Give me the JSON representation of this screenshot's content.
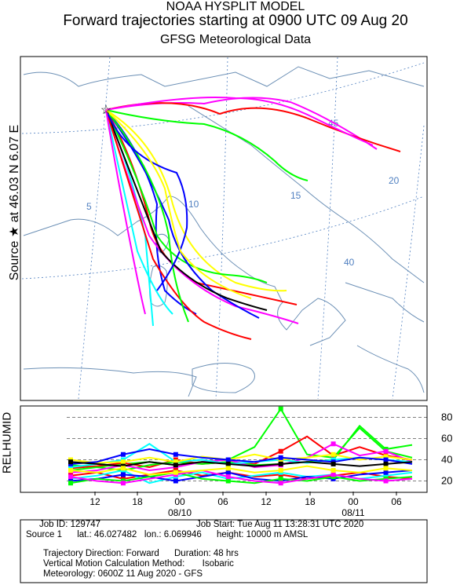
{
  "header": {
    "line1": "NOAA HYSPLIT MODEL",
    "line2": "Forward trajectories starting at 0900 UTC 09 Aug 20",
    "line3": "GFSG Meteorological Data"
  },
  "side_label": "Source ★ at    46.03 N    6.07 E",
  "map": {
    "lon_labels": [
      "5",
      "10",
      "15",
      "20"
    ],
    "lat_labels": [
      "40",
      "45"
    ],
    "source_marker": "star-icon",
    "colors": {
      "red": "#ff0000",
      "blue": "#0000ff",
      "green": "#00ff00",
      "cyan": "#00ffff",
      "magenta": "#ff00ff",
      "yellow": "#ffff00",
      "black": "#000000",
      "land": "#6b8fb5",
      "grid": "#4f7fc0"
    }
  },
  "rh_label": "RELHUMID",
  "footer": {
    "date1": "08/10",
    "date2": "08/11",
    "job_id": "Job ID: 129747",
    "job_start": "Job Start: Tue Aug 11 13:28:31 UTC 2020",
    "source": "Source 1      lat.: 46.027482   lon.: 6.069946      height: 10000 m AMSL",
    "traj_direction": "Trajectory Direction: Forward      Duration: 48 hrs",
    "vertical_motion": "Vertical Motion Calculation Method:       Isobaric",
    "meteorology": "Meteorology: 0600Z 11 Aug 2020 - GFS"
  },
  "chart_data": {
    "type": "line",
    "title": "Forward trajectories starting at 0900 UTC 09 Aug 20",
    "ylabel": "RELHUMID",
    "x_tick_labels": [
      "12",
      "18",
      "00",
      "06",
      "12",
      "18",
      "00",
      "06"
    ],
    "y_ticks": [
      20,
      40,
      60,
      80
    ],
    "ylim": [
      10,
      90
    ],
    "grid": "dashed horizontal lines at 20, 40, 60, 80",
    "series": [
      {
        "color": "#00ff00",
        "values": [
          35,
          33,
          36,
          38,
          35,
          38,
          40,
          52,
          88,
          45,
          42,
          70,
          48,
          42
        ]
      },
      {
        "color": "#ff0000",
        "values": [
          32,
          34,
          37,
          33,
          40,
          36,
          38,
          36,
          48,
          62,
          44,
          52,
          44,
          40
        ]
      },
      {
        "color": "#00ff00",
        "values": [
          30,
          33,
          30,
          35,
          38,
          36,
          38,
          35,
          36,
          38,
          40,
          72,
          50,
          54
        ]
      },
      {
        "color": "#ff00ff",
        "values": [
          28,
          30,
          35,
          30,
          33,
          38,
          40,
          33,
          35,
          42,
          55,
          44,
          48,
          38
        ]
      },
      {
        "color": "#00ffff",
        "values": [
          33,
          36,
          40,
          55,
          38,
          40,
          36,
          38,
          40,
          37,
          40,
          42,
          40,
          38
        ]
      },
      {
        "color": "#ffff00",
        "values": [
          40,
          37,
          38,
          42,
          38,
          43,
          40,
          45,
          40,
          42,
          45,
          40,
          43,
          40
        ]
      },
      {
        "color": "#0000ff",
        "values": [
          36,
          38,
          45,
          50,
          45,
          42,
          40,
          38,
          42,
          40,
          38,
          42,
          40,
          36
        ]
      },
      {
        "color": "#000000",
        "values": [
          38,
          36,
          34,
          38,
          35,
          38,
          36,
          34,
          36,
          38,
          36,
          34,
          36,
          38
        ]
      },
      {
        "color": "#ff0000",
        "values": [
          25,
          28,
          22,
          26,
          30,
          25,
          28,
          24,
          26,
          22,
          25,
          28,
          24,
          22
        ]
      },
      {
        "color": "#00ffff",
        "values": [
          22,
          25,
          30,
          18,
          24,
          28,
          22,
          25,
          28,
          24,
          26,
          22,
          25,
          28
        ]
      },
      {
        "color": "#0000ff",
        "values": [
          20,
          22,
          26,
          24,
          20,
          24,
          28,
          22,
          20,
          24,
          22,
          26,
          28,
          30
        ]
      },
      {
        "color": "#00ff00",
        "values": [
          18,
          22,
          20,
          24,
          28,
          22,
          20,
          18,
          22,
          20,
          24,
          20,
          22,
          24
        ]
      },
      {
        "color": "#ff00ff",
        "values": [
          24,
          20,
          18,
          22,
          26,
          30,
          24,
          20,
          18,
          22,
          26,
          22,
          20,
          22
        ]
      },
      {
        "color": "#ffff00",
        "values": [
          30,
          28,
          32,
          26,
          28,
          30,
          32,
          28,
          30,
          34,
          30,
          28,
          32,
          30
        ]
      }
    ]
  }
}
